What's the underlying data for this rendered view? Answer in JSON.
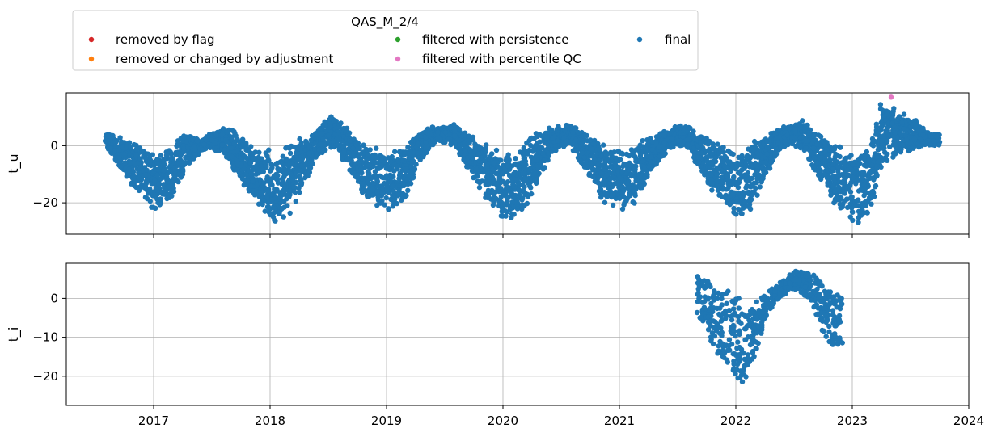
{
  "legend": {
    "title": "QAS_M_2/4",
    "items": [
      {
        "label": "removed by flag",
        "color": "#d62728"
      },
      {
        "label": "removed or changed by adjustment",
        "color": "#ff7f0e"
      },
      {
        "label": "filtered with persistence",
        "color": "#2ca02c"
      },
      {
        "label": "filtered with percentile QC",
        "color": "#e377c2"
      },
      {
        "label": "final",
        "color": "#1f77b4"
      }
    ]
  },
  "chart_data": [
    {
      "type": "scatter",
      "ylabel": "t_u",
      "xlim": [
        "2016-04",
        "2024-01"
      ],
      "ylim": [
        -31,
        18.5
      ],
      "yticks": [
        -20,
        0
      ],
      "xticks": [
        "2017",
        "2018",
        "2019",
        "2020",
        "2021",
        "2022",
        "2023",
        "2024"
      ],
      "grid": true,
      "series": [
        {
          "name": "final",
          "color": "#1f77b4",
          "x": [
            "2016-08",
            "2016-09",
            "2016-10",
            "2016-11",
            "2016-12",
            "2017-01",
            "2017-02",
            "2017-03",
            "2017-04",
            "2017-05",
            "2017-06",
            "2017-07",
            "2017-08",
            "2017-09",
            "2017-10",
            "2017-11",
            "2017-12",
            "2018-01",
            "2018-02",
            "2018-03",
            "2018-04",
            "2018-05",
            "2018-06",
            "2018-07",
            "2018-08",
            "2018-09",
            "2018-10",
            "2018-11",
            "2018-12",
            "2019-01",
            "2019-02",
            "2019-03",
            "2019-04",
            "2019-05",
            "2019-06",
            "2019-07",
            "2019-08",
            "2019-09",
            "2019-10",
            "2019-11",
            "2019-12",
            "2020-01",
            "2020-02",
            "2020-03",
            "2020-04",
            "2020-05",
            "2020-06",
            "2020-07",
            "2020-08",
            "2020-09",
            "2020-10",
            "2020-11",
            "2020-12",
            "2021-01",
            "2021-02",
            "2021-03",
            "2021-04",
            "2021-05",
            "2021-06",
            "2021-07",
            "2021-08",
            "2021-09",
            "2021-10",
            "2021-11",
            "2021-12",
            "2022-01",
            "2022-02",
            "2022-03",
            "2022-04",
            "2022-05",
            "2022-06",
            "2022-07",
            "2022-08",
            "2022-09",
            "2022-10",
            "2022-11",
            "2022-12",
            "2023-01",
            "2023-02",
            "2023-03",
            "2023-04",
            "2023-05",
            "2023-06",
            "2023-07",
            "2023-08",
            "2023-09"
          ],
          "max": [
            5,
            4,
            2,
            1,
            0,
            -2,
            -2,
            0,
            6,
            3,
            2,
            5,
            7,
            6,
            3,
            1,
            0,
            -1,
            -2,
            0,
            3,
            4,
            6,
            11,
            9,
            6,
            3,
            1,
            0,
            -2,
            -2,
            1,
            4,
            6,
            7,
            7,
            8,
            5,
            3,
            1,
            0,
            -3,
            -3,
            0,
            4,
            6,
            7,
            7,
            8,
            5,
            3,
            1,
            0,
            -1,
            -2,
            1,
            3,
            4,
            6,
            8,
            7,
            5,
            3,
            1,
            0,
            -2,
            -2,
            2,
            4,
            6,
            7,
            8,
            9,
            6,
            4,
            1,
            0,
            -1,
            -2,
            2,
            16,
            14,
            12,
            10,
            8,
            4
          ],
          "min": [
            0,
            -5,
            -10,
            -15,
            -18,
            -23,
            -22,
            -18,
            -12,
            -5,
            -2,
            -1,
            -3,
            -8,
            -13,
            -18,
            -23,
            -27,
            -29,
            -25,
            -18,
            -10,
            -4,
            -1,
            -2,
            -8,
            -14,
            -20,
            -23,
            -23,
            -22,
            -18,
            -10,
            -3,
            1,
            1,
            0,
            -6,
            -12,
            -18,
            -22,
            -26,
            -27,
            -24,
            -18,
            -10,
            -3,
            0,
            -1,
            -6,
            -12,
            -18,
            -22,
            -22,
            -23,
            -18,
            -12,
            -6,
            -2,
            0,
            -1,
            -7,
            -13,
            -18,
            -22,
            -24,
            -25,
            -20,
            -12,
            -5,
            -1,
            0,
            -2,
            -8,
            -14,
            -20,
            -23,
            -27,
            -27,
            -22,
            -8,
            -5,
            -3,
            -2,
            -1,
            0
          ]
        },
        {
          "name": "filtered with percentile QC",
          "color": "#e377c2",
          "x": [
            "2023-05"
          ],
          "y": [
            17
          ]
        }
      ]
    },
    {
      "type": "scatter",
      "ylabel": "t_i",
      "xlim": [
        "2016-04",
        "2024-01"
      ],
      "ylim": [
        -27.5,
        9
      ],
      "yticks": [
        -20,
        -10,
        0
      ],
      "xticks": [
        "2017",
        "2018",
        "2019",
        "2020",
        "2021",
        "2022",
        "2023",
        "2024"
      ],
      "grid": true,
      "series": [
        {
          "name": "final",
          "color": "#1f77b4",
          "x": [
            "2021-09",
            "2021-10",
            "2021-11",
            "2021-12",
            "2022-01",
            "2022-02",
            "2022-03",
            "2022-04",
            "2022-05",
            "2022-06",
            "2022-07",
            "2022-08",
            "2022-09",
            "2022-10",
            "2022-11"
          ],
          "max": [
            6,
            5,
            2,
            3,
            1,
            -2,
            -1,
            1,
            3,
            5,
            7,
            7,
            6,
            4,
            1
          ],
          "min": [
            -5,
            -9,
            -14,
            -16,
            -20,
            -23,
            -14,
            -6,
            -1,
            1,
            2,
            1,
            -2,
            -10,
            -12
          ]
        }
      ]
    }
  ]
}
